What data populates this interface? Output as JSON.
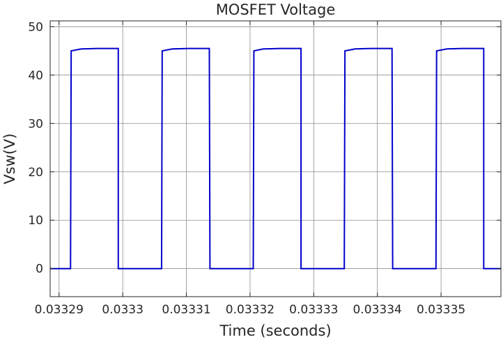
{
  "chart_data": {
    "type": "line",
    "title": "MOSFET Voltage",
    "xlabel": "Time (seconds)",
    "ylabel": "Vsw(V)",
    "xlim": [
      0.0332886,
      0.0333594
    ],
    "ylim": [
      -5.8,
      51.2
    ],
    "grid": true,
    "x_ticks": [
      0.03329,
      0.0333,
      0.03331,
      0.03332,
      0.03333,
      0.03334,
      0.03335
    ],
    "x_tick_labels": [
      "0.03329",
      "0.0333",
      "0.03331",
      "0.03332",
      "0.03333",
      "0.03334",
      "0.03335"
    ],
    "y_ticks": [
      0,
      10,
      20,
      30,
      40,
      50
    ],
    "y_tick_labels": [
      "0",
      "10",
      "20",
      "30",
      "40",
      "50"
    ],
    "colors": {
      "series": "#0000cc",
      "grid": "#8c8c8c",
      "axes": "#262626"
    },
    "series": [
      {
        "x": [
          0.0332886,
          0.0332918,
          0.0332919,
          0.0332935,
          0.033296,
          0.0332993,
          0.0332993,
          0.0333061,
          0.0333062,
          0.0333078,
          0.0333103,
          0.0333136,
          0.0333137,
          0.0333205,
          0.0333206,
          0.0333221,
          0.0333247,
          0.033328,
          0.033328,
          0.0333348,
          0.0333349,
          0.0333365,
          0.033339,
          0.0333423,
          0.0333424,
          0.0333492,
          0.0333493,
          0.0333509,
          0.0333534,
          0.0333567,
          0.0333567,
          0.0333594
        ],
        "y": [
          0,
          0,
          45,
          45.4,
          45.5,
          45.5,
          0,
          0,
          45,
          45.4,
          45.5,
          45.5,
          0,
          0,
          45,
          45.4,
          45.5,
          45.5,
          0,
          0,
          45,
          45.4,
          45.5,
          45.5,
          0,
          0,
          45,
          45.4,
          45.5,
          45.5,
          0,
          0
        ]
      }
    ]
  }
}
